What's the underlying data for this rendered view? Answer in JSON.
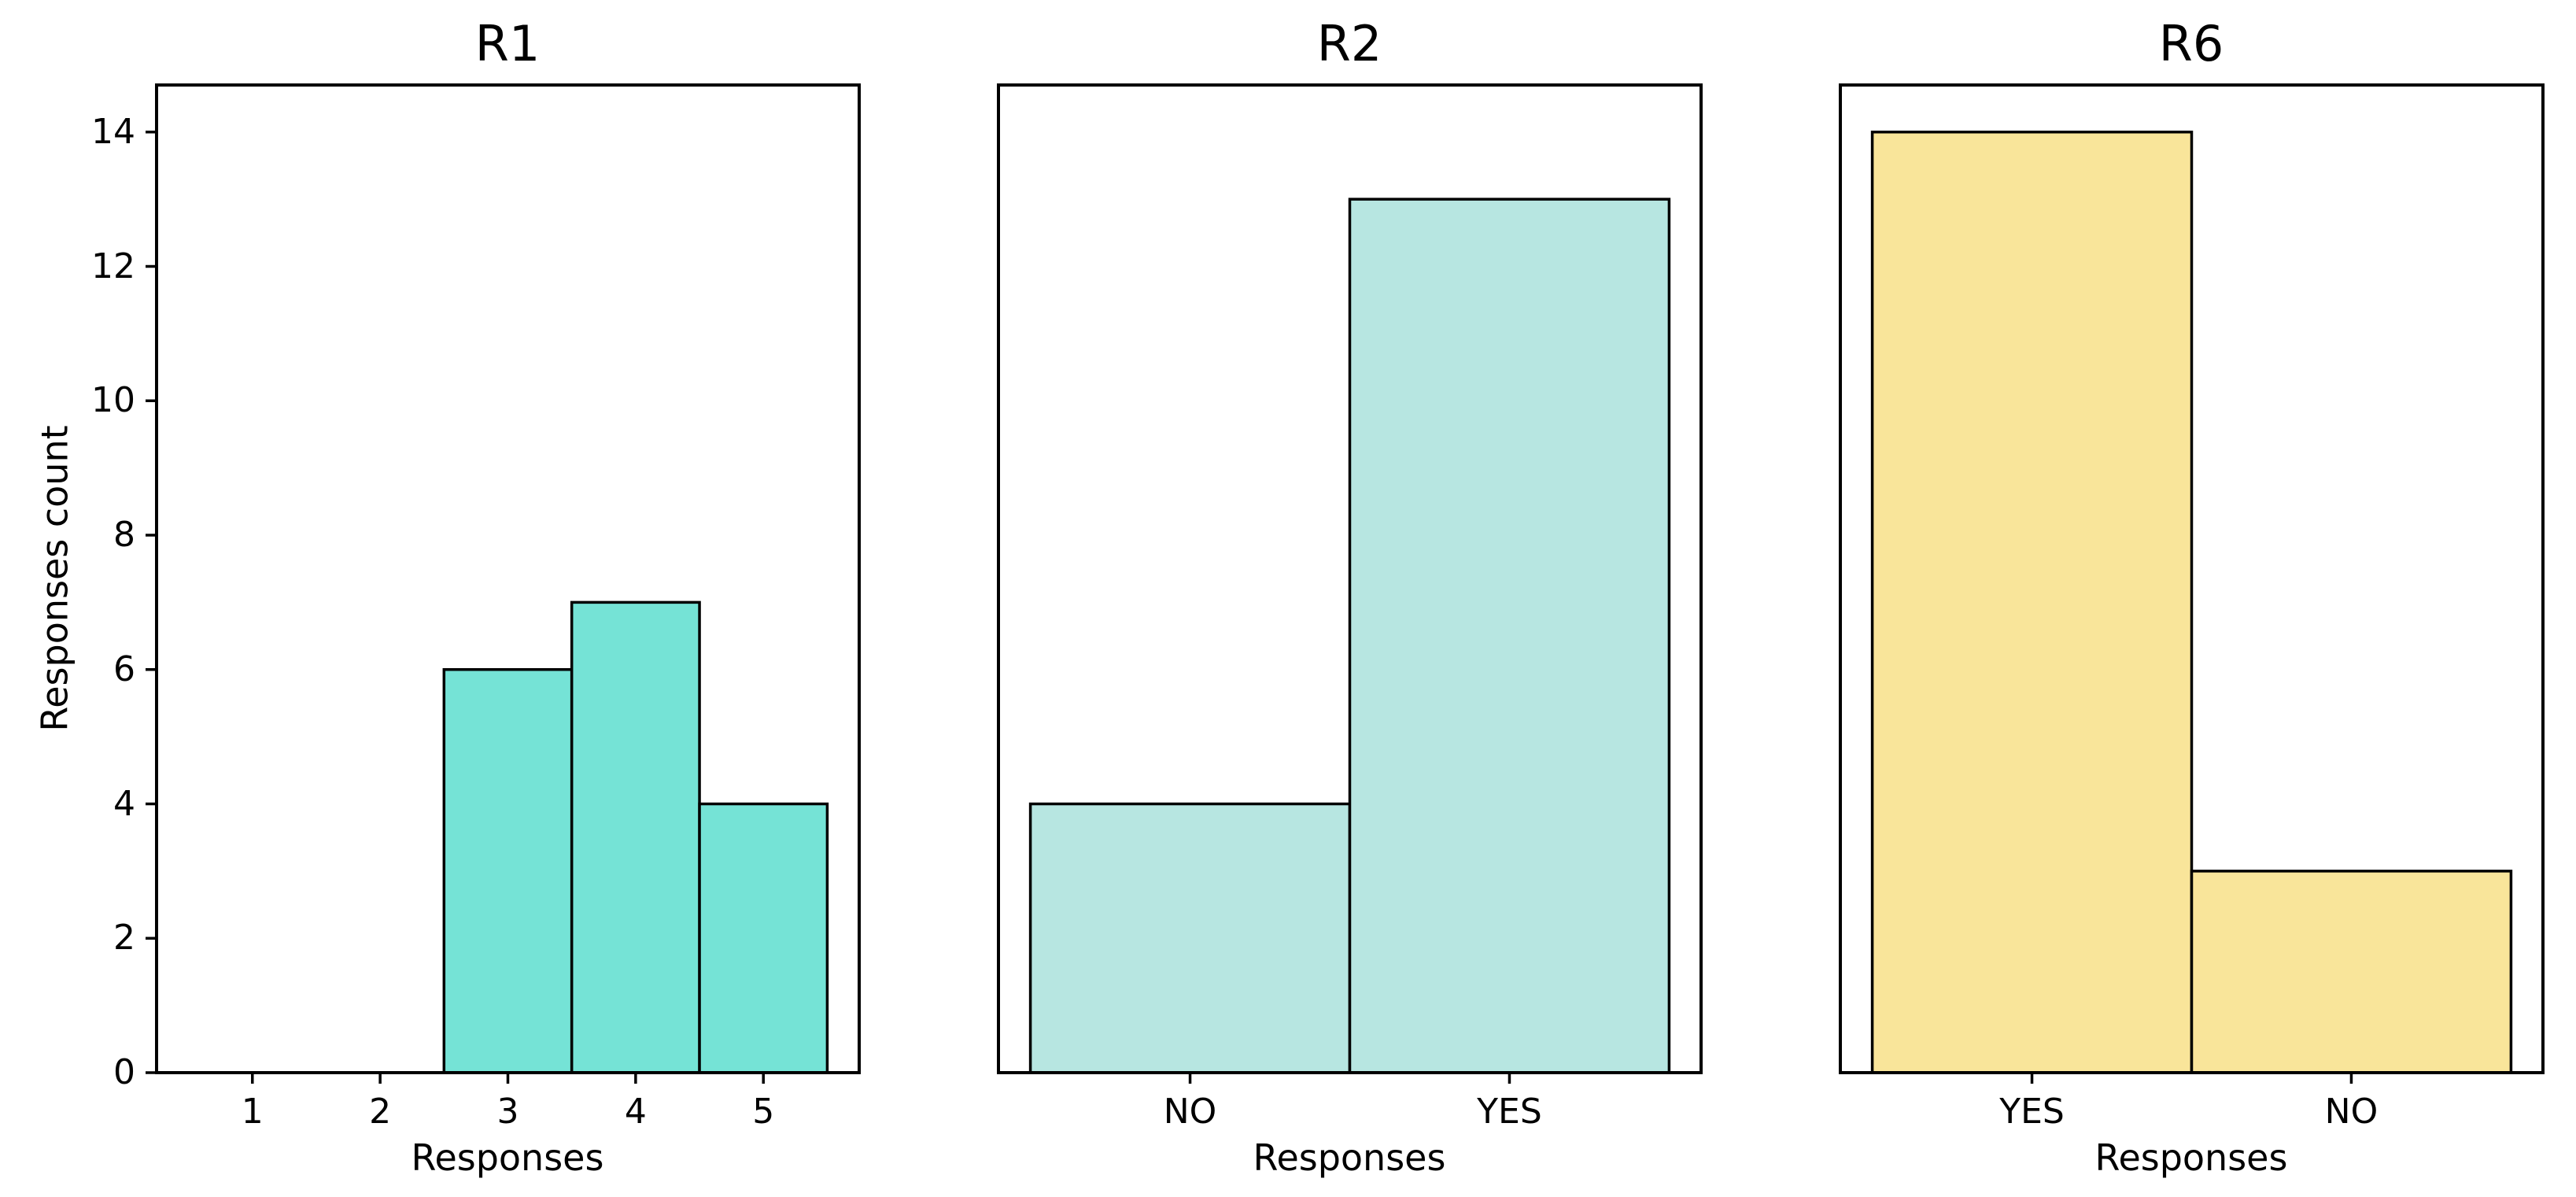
{
  "figure": {
    "background_color": "#ffffff",
    "text_color": "#000000",
    "ylabel": "Responses count"
  },
  "chart_data": [
    {
      "type": "bar",
      "title": "R1",
      "xlabel": "Responses",
      "ylabel": "Responses count",
      "categories": [
        "1",
        "2",
        "3",
        "4",
        "5"
      ],
      "values": [
        0,
        0,
        6,
        7,
        4
      ],
      "bar_color": "#75E3D6",
      "edge_color": "#000000",
      "ylim": [
        0,
        14.7
      ],
      "yticks": [
        0,
        2,
        4,
        6,
        8,
        10,
        12,
        14
      ],
      "show_y_tick_labels": true,
      "grid": false,
      "legend_position": "none"
    },
    {
      "type": "bar",
      "title": "R2",
      "xlabel": "Responses",
      "categories": [
        "NO",
        "YES"
      ],
      "values": [
        4,
        13
      ],
      "bar_color": "#B7E6E1",
      "edge_color": "#000000",
      "ylim": [
        0,
        14.7
      ],
      "yticks": [
        0,
        2,
        4,
        6,
        8,
        10,
        12,
        14
      ],
      "show_y_tick_labels": false,
      "grid": false,
      "legend_position": "none"
    },
    {
      "type": "bar",
      "title": "R6",
      "xlabel": "Responses",
      "categories": [
        "YES",
        "NO"
      ],
      "values": [
        14,
        3
      ],
      "bar_color": "#F9E59A",
      "edge_color": "#000000",
      "ylim": [
        0,
        14.7
      ],
      "yticks": [
        0,
        2,
        4,
        6,
        8,
        10,
        12,
        14
      ],
      "show_y_tick_labels": false,
      "grid": false,
      "legend_position": "none"
    }
  ]
}
